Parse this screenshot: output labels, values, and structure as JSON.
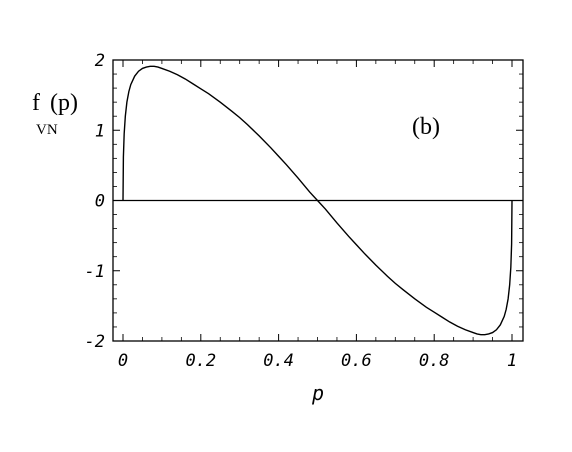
{
  "chart_data": {
    "type": "line",
    "ylabel": {
      "main": "f",
      "subscript": "VN",
      "argument": "(p)"
    },
    "xlabel": "p",
    "annotation": "(b)",
    "xlim": [
      0,
      1
    ],
    "ylim": [
      -2,
      2
    ],
    "x_ticks": [
      0,
      0.2,
      0.4,
      0.6,
      0.8,
      1
    ],
    "x_tick_labels": [
      "0",
      "0.2",
      "0.4",
      "0.6",
      "0.8",
      "1"
    ],
    "y_ticks": [
      -2,
      -1,
      0,
      1,
      2
    ],
    "y_tick_labels": [
      "-2",
      "-1",
      "0",
      "1",
      "2"
    ],
    "grid": false,
    "zero_line": true,
    "series": [
      {
        "x": [
          0,
          0.001,
          0.003,
          0.006,
          0.01,
          0.015,
          0.02,
          0.03,
          0.04,
          0.05,
          0.06,
          0.07,
          0.08,
          0.09,
          0.1,
          0.12,
          0.14,
          0.16,
          0.18,
          0.2,
          0.22,
          0.25,
          0.28,
          0.3,
          0.32,
          0.35,
          0.38,
          0.4,
          0.42,
          0.45,
          0.48,
          0.5,
          0.52,
          0.55,
          0.58,
          0.6,
          0.62,
          0.65,
          0.68,
          0.7,
          0.72,
          0.75,
          0.78,
          0.8,
          0.82,
          0.84,
          0.86,
          0.88,
          0.9,
          0.91,
          0.92,
          0.93,
          0.94,
          0.95,
          0.96,
          0.97,
          0.98,
          0.985,
          0.99,
          0.994,
          0.997,
          0.999,
          1
        ],
        "y": [
          0,
          0.62,
          0.95,
          1.2,
          1.4,
          1.55,
          1.65,
          1.77,
          1.84,
          1.88,
          1.9,
          1.91,
          1.91,
          1.9,
          1.88,
          1.84,
          1.79,
          1.73,
          1.66,
          1.59,
          1.52,
          1.4,
          1.27,
          1.18,
          1.08,
          0.92,
          0.75,
          0.63,
          0.51,
          0.32,
          0.12,
          0,
          -0.12,
          -0.32,
          -0.51,
          -0.63,
          -0.75,
          -0.92,
          -1.08,
          -1.18,
          -1.27,
          -1.4,
          -1.52,
          -1.59,
          -1.66,
          -1.73,
          -1.79,
          -1.84,
          -1.88,
          -1.9,
          -1.91,
          -1.91,
          -1.9,
          -1.88,
          -1.84,
          -1.77,
          -1.65,
          -1.55,
          -1.4,
          -1.2,
          -0.95,
          -0.62,
          0
        ]
      }
    ]
  }
}
